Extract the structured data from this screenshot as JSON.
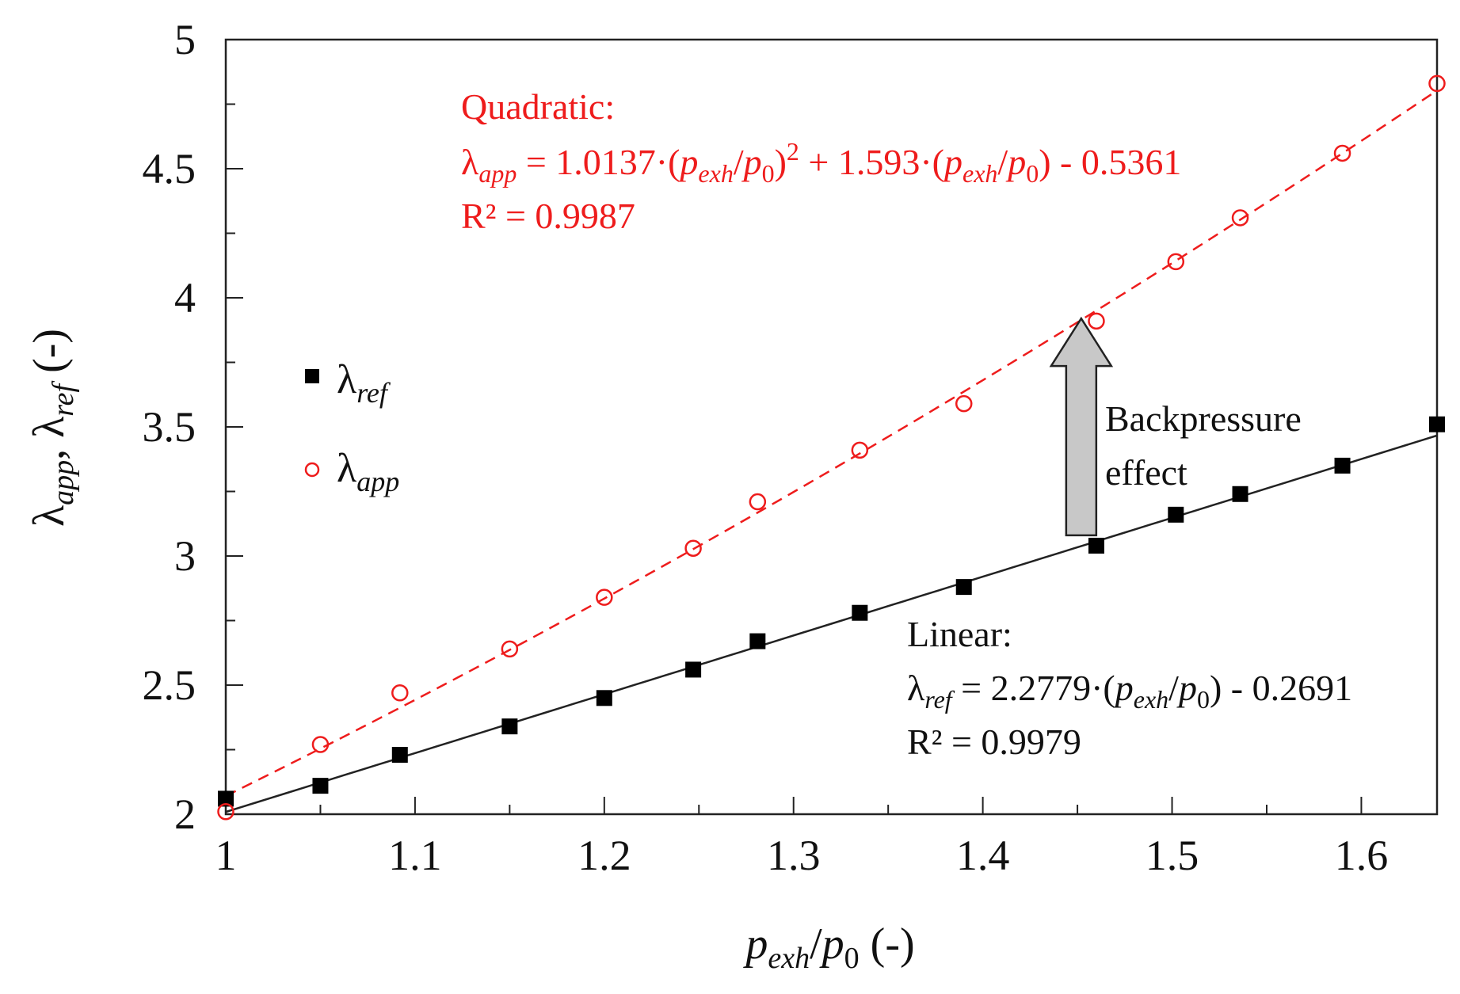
{
  "chart_data": {
    "type": "scatter",
    "xlabel": "p_exh/p_0 (-)",
    "ylabel": "λ_app, λ_ref (-)",
    "xlim": [
      1.0,
      1.64
    ],
    "ylim": [
      2.0,
      5.0
    ],
    "xticks": [
      1,
      1.1,
      1.2,
      1.3,
      1.4,
      1.5,
      1.6
    ],
    "xtick_labels": [
      "1",
      "1.1",
      "1.2",
      "1.3",
      "1.4",
      "1.5",
      "1.6"
    ],
    "yticks": [
      2,
      2.5,
      3,
      3.5,
      4,
      4.5,
      5
    ],
    "ytick_labels": [
      "2",
      "2.5",
      "3",
      "3.5",
      "4",
      "4.5",
      "5"
    ],
    "series": [
      {
        "name": "λref",
        "marker": "filled-square",
        "color": "#000000",
        "x": [
          1.0,
          1.05,
          1.092,
          1.15,
          1.2,
          1.247,
          1.281,
          1.335,
          1.39,
          1.46,
          1.502,
          1.536,
          1.59,
          1.64
        ],
        "y": [
          2.06,
          2.11,
          2.23,
          2.34,
          2.45,
          2.56,
          2.67,
          2.78,
          2.88,
          3.04,
          3.16,
          3.24,
          3.35,
          3.51
        ],
        "fit": {
          "type": "linear",
          "a": 2.2779,
          "b": -0.2691,
          "style": "solid",
          "color": "#222222"
        }
      },
      {
        "name": "λapp",
        "marker": "open-circle",
        "color": "#ee1c1c",
        "x": [
          1.0,
          1.05,
          1.092,
          1.15,
          1.2,
          1.247,
          1.281,
          1.335,
          1.39,
          1.46,
          1.502,
          1.536,
          1.59,
          1.64
        ],
        "y": [
          2.01,
          2.27,
          2.47,
          2.64,
          2.84,
          3.03,
          3.21,
          3.41,
          3.59,
          3.91,
          4.14,
          4.31,
          4.56,
          4.83
        ],
        "fit": {
          "type": "quadratic",
          "a": 1.0137,
          "b": 1.593,
          "c": -0.5361,
          "style": "dashed",
          "color": "#ee1c1c"
        }
      }
    ],
    "legend": {
      "placement": "middle-left",
      "items": [
        {
          "symbol": "λ",
          "sub": "ref"
        },
        {
          "symbol": "λ",
          "sub": "app"
        }
      ]
    },
    "annotations": {
      "quadratic": {
        "title": "Quadratic:",
        "lambda": "λ",
        "lambda_sub": "app",
        "eq_part1": " = 1.0137·(",
        "p": "p",
        "exh": "exh",
        "slash": "/",
        "zero": "0",
        "eq_part2": ")",
        "sq": "2",
        "eq_part3": " + 1.593·(",
        "eq_part4": ") - 0.5361",
        "r2": "R² = 0.9987"
      },
      "linear": {
        "title": "Linear:",
        "lambda": "λ",
        "lambda_sub": "ref",
        "eq_part1": " = 2.2779·(",
        "p": "p",
        "exh": "exh",
        "slash": "/",
        "zero": "0",
        "eq_part2": ") - 0.2691",
        "r2": "R² = 0.9979"
      },
      "arrow": {
        "line1": "Backpressure",
        "line2": "effect",
        "from_y": 3.08,
        "to_y": 3.92,
        "at_x": 1.452
      }
    },
    "axis_titles": {
      "x_p": "p",
      "x_exh": "exh",
      "x_slash": "/",
      "x_zero": "0",
      "x_unit": " (-)",
      "y_lambda1": "λ",
      "y_app": "app",
      "y_comma": ", ",
      "y_lambda2": "λ",
      "y_ref": "ref",
      "y_unit": " (-)"
    },
    "colors": {
      "red": "#ee1c1c",
      "black": "#000000",
      "arrow_fill": "#c8c8c8"
    }
  }
}
